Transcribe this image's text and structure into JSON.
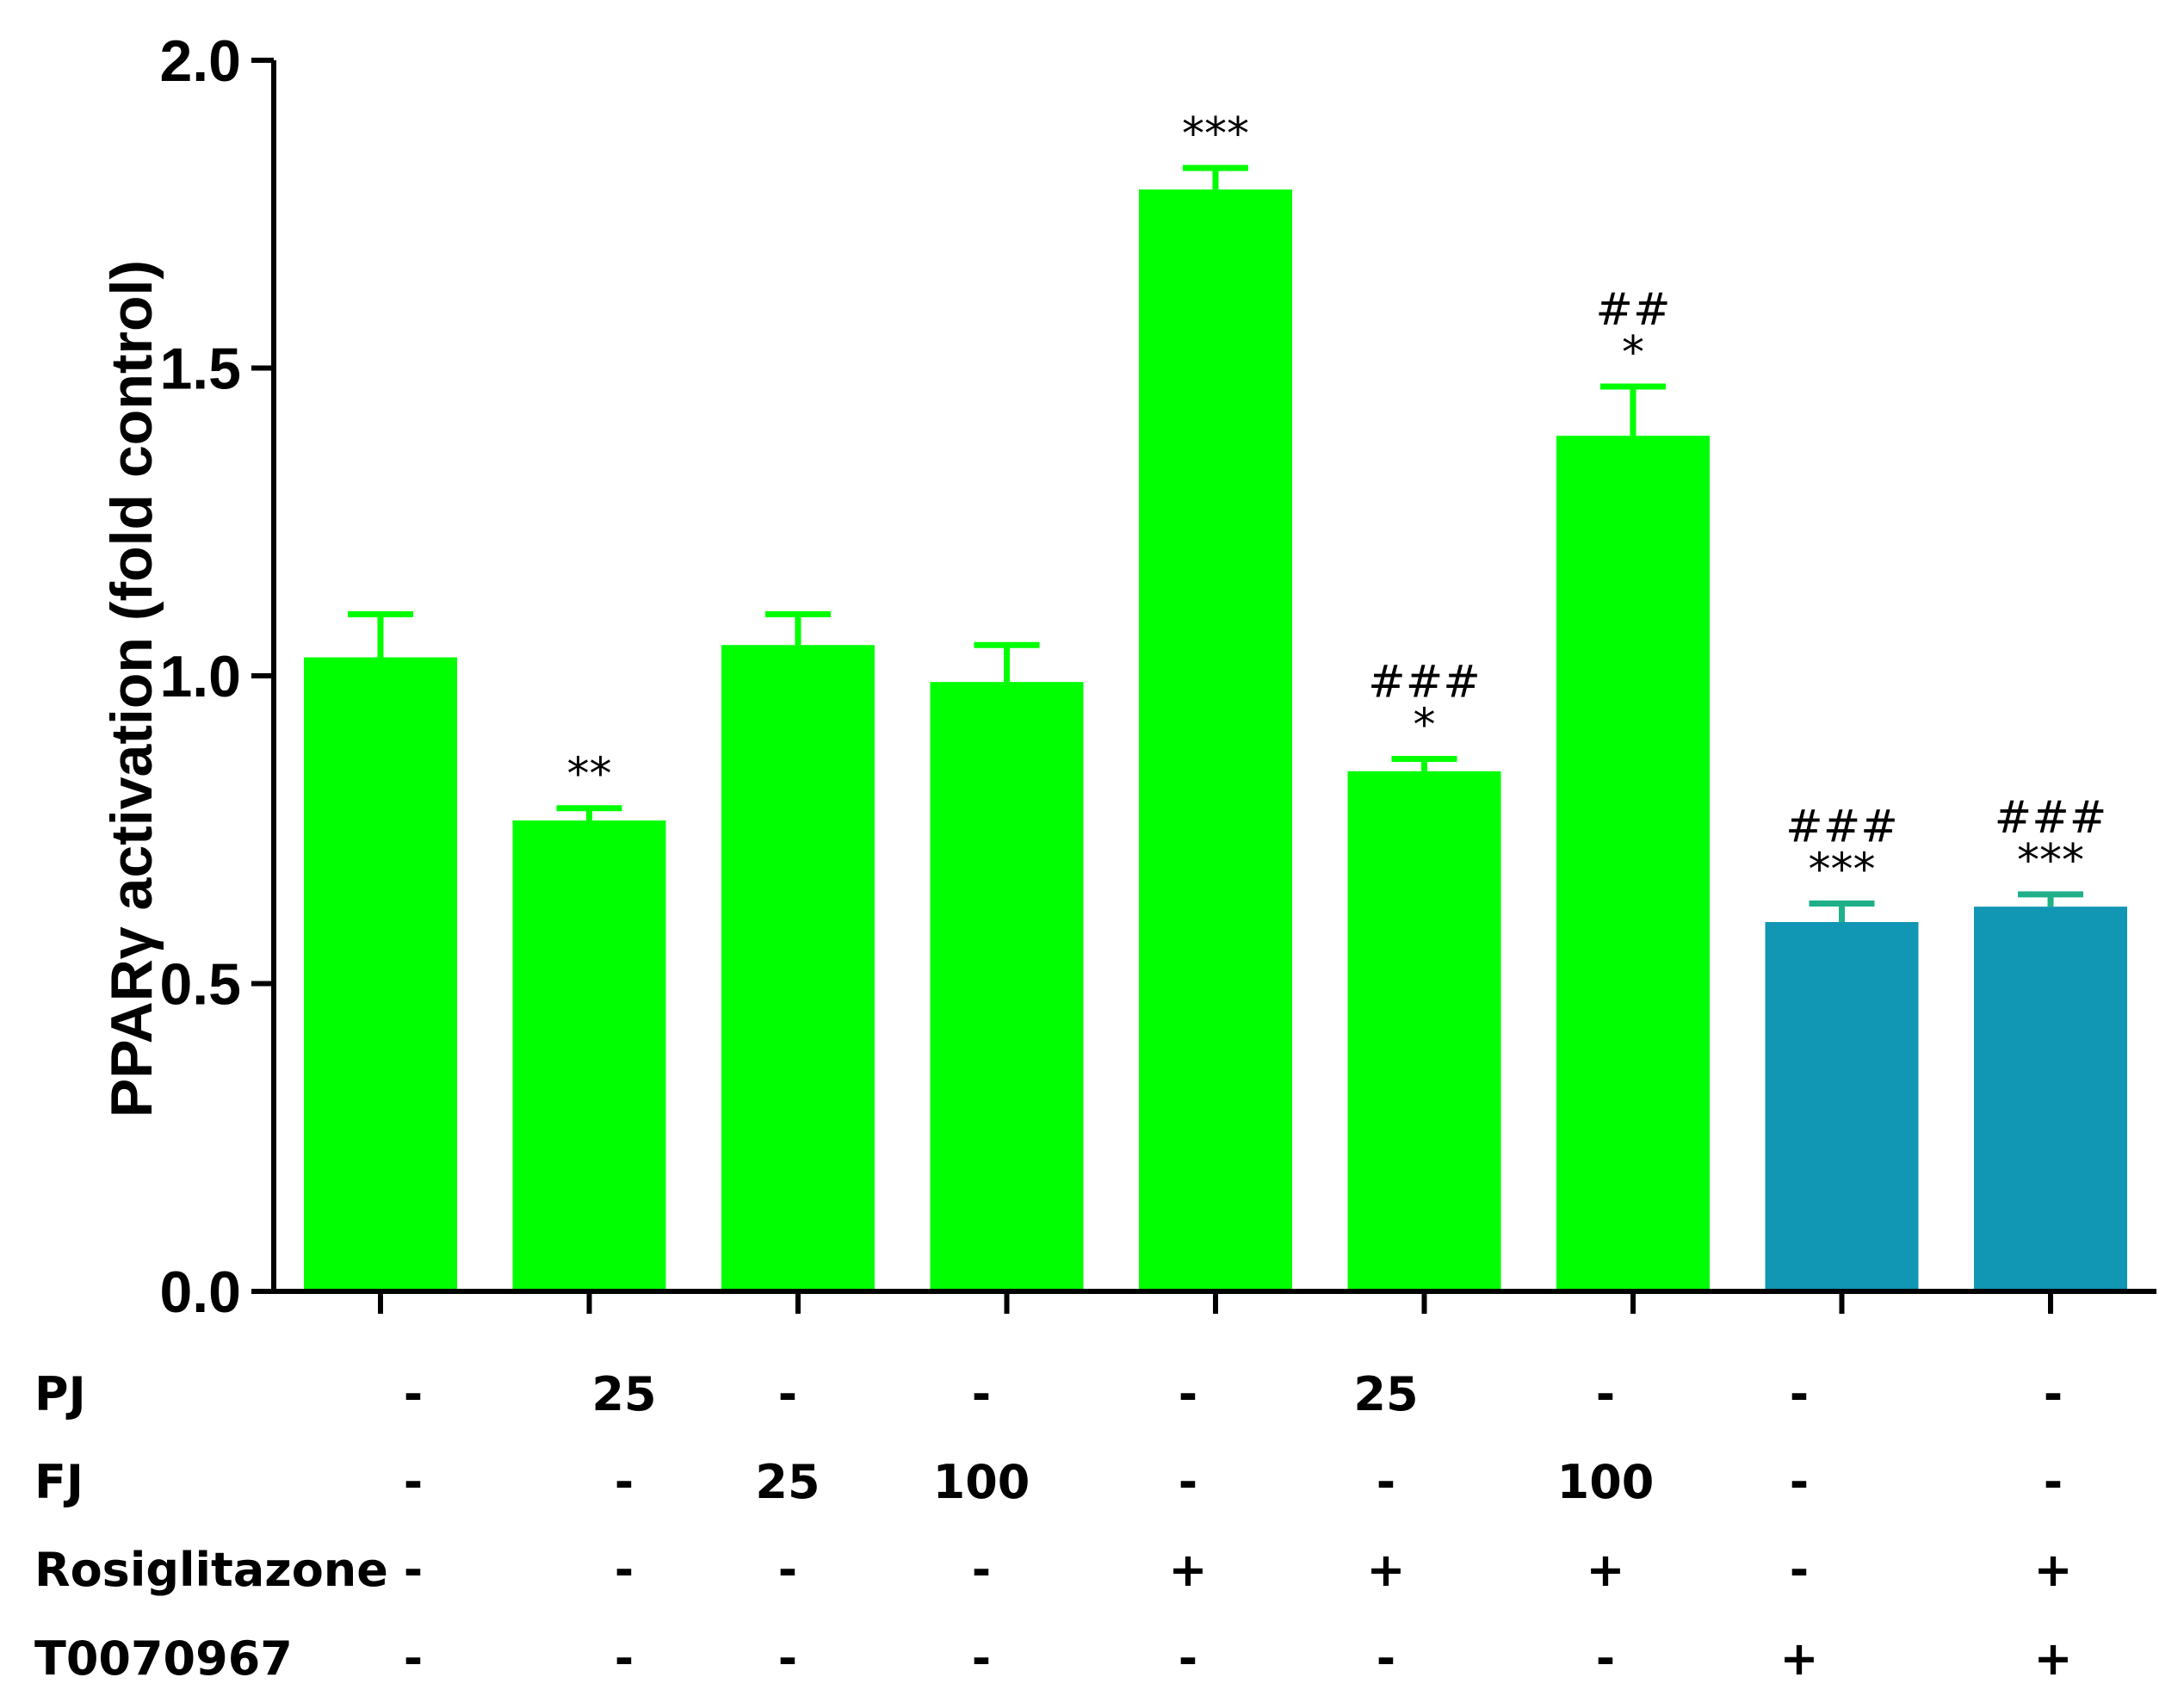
{
  "chart_data": {
    "type": "bar",
    "ylabel": "PPARγ activation (fold control)",
    "ylim": [
      0,
      2.0
    ],
    "yticks": [
      "0.0",
      "0.5",
      "1.0",
      "1.5",
      "2.0"
    ],
    "bars": [
      {
        "value": 1.03,
        "error": 0.07,
        "color": "#00ff00",
        "annotations": []
      },
      {
        "value": 0.765,
        "error": 0.02,
        "color": "#00ff00",
        "annotations": [
          "**"
        ]
      },
      {
        "value": 1.05,
        "error": 0.05,
        "color": "#00ff00",
        "annotations": []
      },
      {
        "value": 0.99,
        "error": 0.06,
        "color": "#00ff00",
        "annotations": []
      },
      {
        "value": 1.79,
        "error": 0.035,
        "color": "#00ff00",
        "annotations": [
          "***"
        ]
      },
      {
        "value": 0.845,
        "error": 0.02,
        "color": "#00ff00",
        "annotations": [
          "*",
          "###"
        ]
      },
      {
        "value": 1.39,
        "error": 0.08,
        "color": "#00ff00",
        "annotations": [
          "*",
          "##"
        ]
      },
      {
        "value": 0.6,
        "error": 0.03,
        "color": "#1196b4",
        "annotations": [
          "***",
          "###"
        ]
      },
      {
        "value": 0.625,
        "error": 0.02,
        "color": "#1196b4",
        "annotations": [
          "***",
          "###"
        ]
      }
    ],
    "conditions": [
      {
        "name": "PJ",
        "values": [
          "-",
          "25",
          "-",
          "-",
          "-",
          "25",
          "-",
          "-",
          "-"
        ]
      },
      {
        "name": "FJ",
        "values": [
          "-",
          "-",
          "25",
          "100",
          "-",
          "-",
          "100",
          "-",
          "-"
        ]
      },
      {
        "name": "Rosiglitazone",
        "values": [
          "-",
          "-",
          "-",
          "-",
          "+",
          "+",
          "+",
          "-",
          "+"
        ]
      },
      {
        "name": "T0070967",
        "values": [
          "-",
          "-",
          "-",
          "-",
          "-",
          "-",
          "-",
          "+",
          "+"
        ]
      }
    ]
  }
}
